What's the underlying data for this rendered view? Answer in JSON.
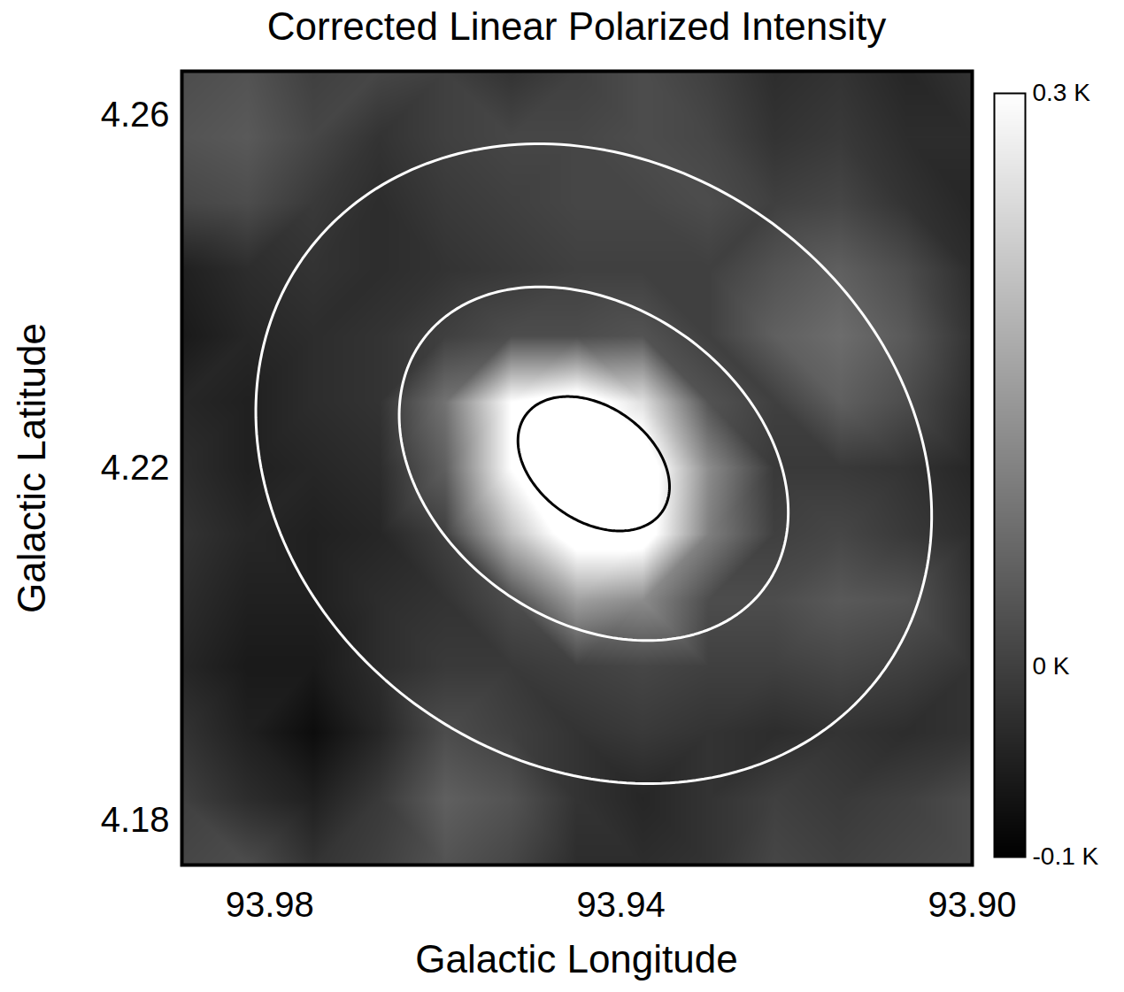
{
  "chart_data": {
    "type": "heatmap",
    "title": "Corrected Linear Polarized Intensity",
    "x_label": "Galactic Longitude",
    "y_label": "Galactic Latitude",
    "xlim": [
      93.99,
      93.9
    ],
    "ylim": [
      4.175,
      4.265
    ],
    "xticks": [
      93.98,
      93.94,
      {
        "value": 93.9,
        "label": "93.90"
      }
    ],
    "yticks": [
      4.26,
      4.22,
      4.18
    ],
    "x": [
      93.99,
      93.9825,
      93.975,
      93.9675,
      93.96,
      93.9525,
      93.945,
      93.9375,
      93.93,
      93.9225,
      93.915,
      93.9075,
      93.9
    ],
    "y": [
      4.265,
      4.2575,
      4.25,
      4.2425,
      4.235,
      4.2275,
      4.22,
      4.2125,
      4.205,
      4.1975,
      4.19,
      4.1825,
      4.175
    ],
    "values": [
      [
        0.02,
        0.03,
        0.0,
        0.01,
        0.0,
        -0.02,
        0.0,
        0.02,
        0.0,
        -0.03,
        -0.02,
        -0.04,
        -0.02
      ],
      [
        0.03,
        0.04,
        0.01,
        -0.02,
        0.0,
        0.01,
        0.01,
        0.02,
        0.01,
        -0.02,
        -0.01,
        -0.03,
        -0.03
      ],
      [
        0.01,
        0.02,
        -0.01,
        -0.03,
        -0.01,
        0.0,
        0.01,
        0.01,
        0.02,
        0.0,
        0.01,
        -0.02,
        -0.04
      ],
      [
        -0.05,
        -0.03,
        -0.02,
        -0.03,
        -0.02,
        -0.01,
        0.0,
        0.0,
        0.0,
        0.03,
        0.05,
        0.02,
        -0.03
      ],
      [
        -0.06,
        -0.04,
        -0.03,
        -0.02,
        0.0,
        0.02,
        0.02,
        0.03,
        0.0,
        0.05,
        0.07,
        0.04,
        -0.02
      ],
      [
        -0.04,
        -0.05,
        -0.03,
        -0.02,
        0.08,
        0.3,
        0.35,
        0.25,
        0.03,
        0.0,
        0.05,
        0.02,
        -0.03
      ],
      [
        -0.03,
        -0.05,
        -0.04,
        -0.03,
        0.05,
        0.3,
        0.42,
        0.36,
        0.12,
        -0.01,
        -0.01,
        -0.02,
        -0.04
      ],
      [
        -0.02,
        -0.04,
        -0.05,
        -0.04,
        0.0,
        0.2,
        0.35,
        0.35,
        0.1,
        0.0,
        0.01,
        -0.01,
        -0.03
      ],
      [
        -0.03,
        -0.05,
        -0.05,
        -0.03,
        -0.02,
        0.02,
        0.15,
        0.12,
        0.02,
        0.02,
        0.04,
        0.03,
        -0.02
      ],
      [
        -0.04,
        -0.06,
        -0.06,
        -0.03,
        -0.01,
        -0.01,
        0.0,
        0.01,
        0.0,
        0.0,
        0.01,
        0.0,
        -0.02
      ],
      [
        -0.02,
        -0.05,
        -0.08,
        -0.04,
        0.02,
        0.0,
        -0.02,
        -0.01,
        -0.02,
        -0.03,
        -0.02,
        -0.03,
        -0.02
      ],
      [
        0.0,
        -0.03,
        -0.05,
        -0.01,
        0.05,
        0.03,
        -0.02,
        -0.04,
        -0.02,
        0.0,
        -0.01,
        0.0,
        0.02
      ],
      [
        0.01,
        0.02,
        -0.02,
        0.0,
        0.03,
        0.01,
        -0.03,
        -0.03,
        -0.02,
        0.01,
        0.0,
        0.01,
        0.02
      ]
    ],
    "colorbar_range": [
      -0.1,
      0.3
    ],
    "colorbar_ticks": [
      {
        "value": 0.3,
        "label": "0.3 K"
      },
      {
        "value": 0,
        "label": "0 K"
      },
      {
        "value": -0.1,
        "label": "-0.1 K"
      }
    ],
    "contours": [
      {
        "center": [
          93.9431,
          4.2205
        ],
        "semi_axes": [
          0.0405,
          0.034
        ],
        "angle": 35,
        "color": "white"
      },
      {
        "center": [
          93.9431,
          4.2205
        ],
        "semi_axes": [
          0.024,
          0.0178
        ],
        "angle": 35,
        "color": "white"
      },
      {
        "center": [
          93.9431,
          4.2205
        ],
        "semi_axes": [
          0.0095,
          0.0065
        ],
        "angle": 35,
        "color": "black"
      }
    ]
  }
}
